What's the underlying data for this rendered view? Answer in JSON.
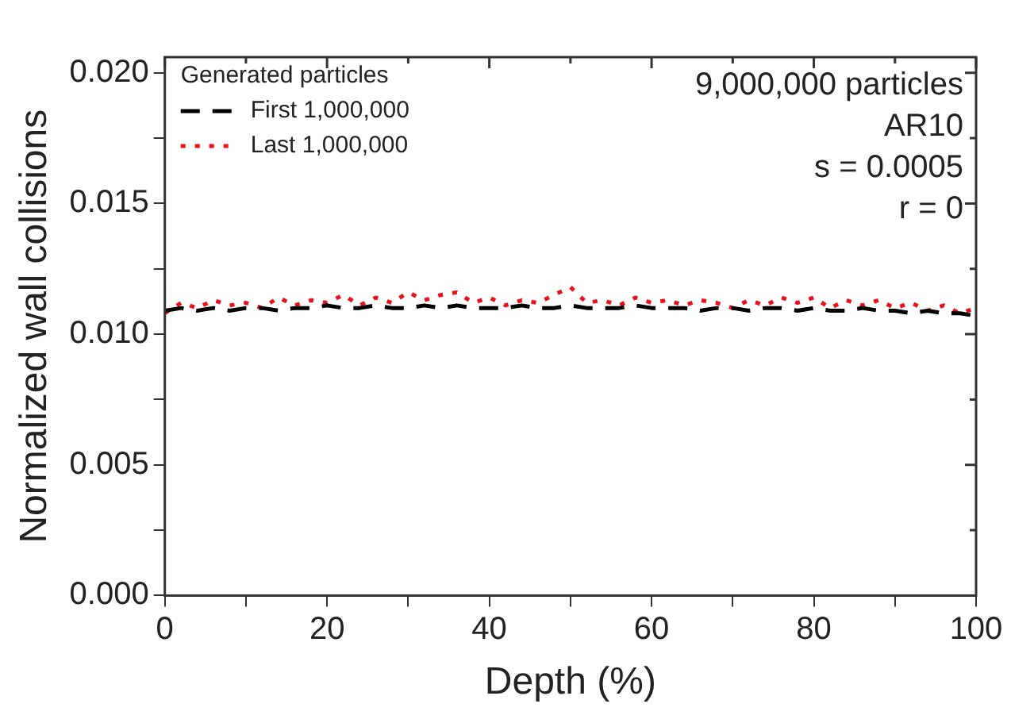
{
  "chart_data": {
    "type": "line",
    "xlabel": "Depth (%)",
    "ylabel": "Normalized wall collisions",
    "legend_title": "Generated particles",
    "legend": "top left",
    "marker": "none",
    "annotations": [
      "9,000,000 particles",
      "AR10",
      "s = 0.0005",
      "r = 0"
    ],
    "x": [
      0,
      2,
      4,
      6,
      8,
      10,
      12,
      14,
      16,
      18,
      20,
      22,
      24,
      26,
      28,
      30,
      32,
      34,
      36,
      38,
      40,
      42,
      44,
      46,
      48,
      50,
      52,
      54,
      56,
      58,
      60,
      62,
      64,
      66,
      68,
      70,
      72,
      74,
      76,
      78,
      80,
      82,
      84,
      86,
      88,
      90,
      92,
      94,
      96,
      98,
      100
    ],
    "xlim": [
      0,
      100
    ],
    "xticks": [
      0,
      {
        "value": 10,
        "label": null
      },
      20,
      {
        "value": 30,
        "label": null
      },
      40,
      {
        "value": 50,
        "label": null
      },
      60,
      {
        "value": 70,
        "label": null
      },
      80,
      {
        "value": 90,
        "label": null
      },
      100
    ],
    "ylim": [
      0,
      0.0206
    ],
    "yticks": [
      {
        "value": 0,
        "label": "0.000"
      },
      {
        "value": 0.0025,
        "label": null
      },
      {
        "value": 0.005,
        "label": "0.005"
      },
      {
        "value": 0.0075,
        "label": null
      },
      {
        "value": 0.01,
        "label": "0.010"
      },
      {
        "value": 0.0125,
        "label": null
      },
      {
        "value": 0.015,
        "label": "0.015"
      },
      {
        "value": 0.0175,
        "label": null
      },
      {
        "value": 0.02,
        "label": "0.020"
      }
    ],
    "series": [
      {
        "name": "First 1,000,000",
        "color": "#000000",
        "line_style": "dashed",
        "values": [
          0.0109,
          0.011,
          0.0109,
          0.011,
          0.0109,
          0.011,
          0.011,
          0.0109,
          0.011,
          0.011,
          0.0111,
          0.011,
          0.011,
          0.0111,
          0.011,
          0.011,
          0.0111,
          0.011,
          0.0111,
          0.011,
          0.011,
          0.011,
          0.0111,
          0.011,
          0.011,
          0.0111,
          0.011,
          0.011,
          0.011,
          0.0111,
          0.011,
          0.011,
          0.011,
          0.0109,
          0.011,
          0.011,
          0.0109,
          0.011,
          0.011,
          0.0109,
          0.011,
          0.0109,
          0.0109,
          0.011,
          0.0109,
          0.0109,
          0.0108,
          0.0109,
          0.0108,
          0.0108,
          0.0107
        ]
      },
      {
        "name": "Last 1,000,000",
        "color": "#e8101a",
        "line_style": "dotted",
        "values": [
          0.0108,
          0.0112,
          0.011,
          0.0113,
          0.0111,
          0.0112,
          0.011,
          0.0114,
          0.0111,
          0.0113,
          0.0112,
          0.0115,
          0.0111,
          0.0114,
          0.0112,
          0.0116,
          0.0113,
          0.0115,
          0.0116,
          0.0112,
          0.0114,
          0.0111,
          0.0113,
          0.0112,
          0.0115,
          0.0118,
          0.0112,
          0.0113,
          0.0111,
          0.0114,
          0.0112,
          0.0113,
          0.0111,
          0.0113,
          0.0112,
          0.011,
          0.0113,
          0.0111,
          0.0114,
          0.0112,
          0.0114,
          0.011,
          0.0113,
          0.0111,
          0.0113,
          0.011,
          0.0112,
          0.0109,
          0.0111,
          0.0108,
          0.011
        ]
      }
    ]
  }
}
